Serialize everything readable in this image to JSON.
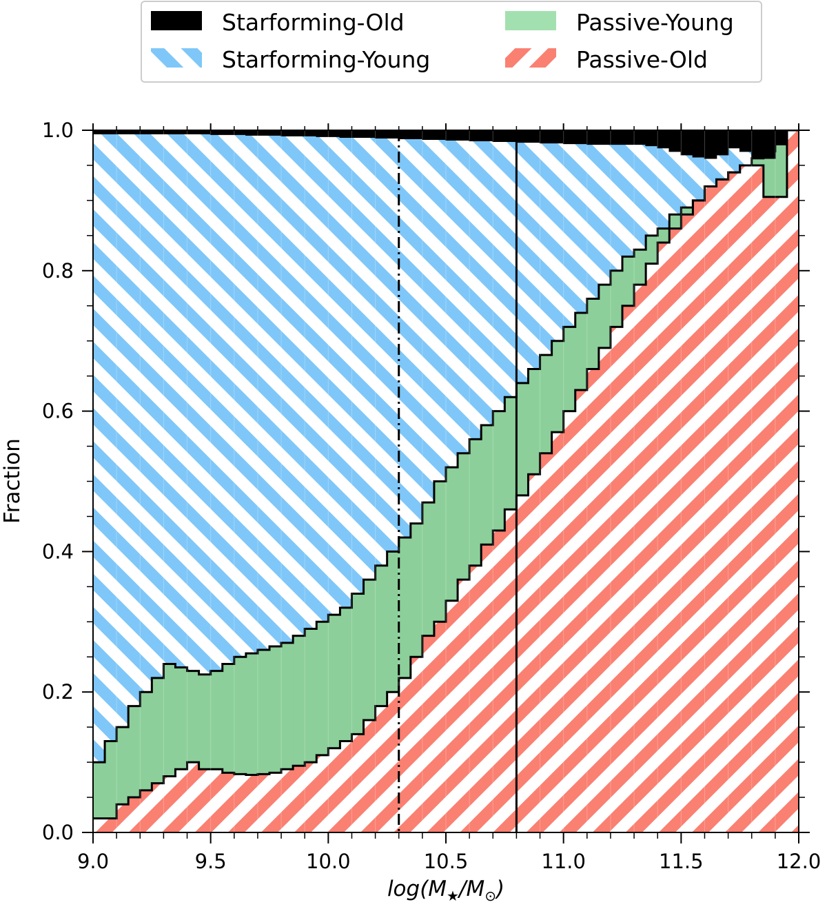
{
  "chart_data": {
    "type": "area",
    "stacked": true,
    "step": true,
    "title": "",
    "xlabel_prefix": "log(",
    "xlabel_m": "M",
    "xlabel_star_sub": "★",
    "xlabel_sep": "/",
    "xlabel_sun_sub": "⊙",
    "xlabel_suffix": ")",
    "ylabel": "Fraction",
    "xlim": [
      9.0,
      12.0
    ],
    "ylim": [
      0.0,
      1.0
    ],
    "xticks": [
      "9.0",
      "9.5",
      "10.0",
      "10.5",
      "11.0",
      "11.5",
      "12.0"
    ],
    "yticks": [
      "0.0",
      "0.2",
      "0.4",
      "0.6",
      "0.8",
      "1.0"
    ],
    "legend_position": "top, outside plot, 2 columns",
    "bin_edges_start": 9.0,
    "bin_edges_end": 12.0,
    "bin_count": 60,
    "series": [
      {
        "name": "Passive-Old",
        "color": "#fa8072",
        "pattern": "hatch-slash",
        "cumulative_top": [
          0.02,
          0.02,
          0.04,
          0.05,
          0.06,
          0.07,
          0.08,
          0.09,
          0.1,
          0.09,
          0.09,
          0.085,
          0.083,
          0.082,
          0.083,
          0.085,
          0.09,
          0.095,
          0.1,
          0.11,
          0.12,
          0.13,
          0.14,
          0.16,
          0.18,
          0.2,
          0.22,
          0.25,
          0.28,
          0.3,
          0.33,
          0.36,
          0.38,
          0.41,
          0.43,
          0.46,
          0.48,
          0.51,
          0.54,
          0.57,
          0.6,
          0.63,
          0.66,
          0.69,
          0.72,
          0.75,
          0.78,
          0.81,
          0.84,
          0.86,
          0.88,
          0.9,
          0.92,
          0.93,
          0.94,
          0.95,
          0.95,
          0.905,
          0.905,
          1.0
        ]
      },
      {
        "name": "Passive-Young",
        "color": "#90d7a0",
        "pattern": "solid",
        "cumulative_top": [
          0.1,
          0.13,
          0.15,
          0.18,
          0.2,
          0.22,
          0.24,
          0.235,
          0.23,
          0.225,
          0.23,
          0.24,
          0.25,
          0.255,
          0.26,
          0.265,
          0.27,
          0.28,
          0.29,
          0.3,
          0.31,
          0.32,
          0.34,
          0.36,
          0.38,
          0.4,
          0.42,
          0.44,
          0.47,
          0.5,
          0.52,
          0.54,
          0.56,
          0.58,
          0.6,
          0.62,
          0.64,
          0.66,
          0.68,
          0.7,
          0.72,
          0.74,
          0.76,
          0.78,
          0.8,
          0.82,
          0.83,
          0.85,
          0.86,
          0.88,
          0.89,
          0.9,
          0.92,
          0.93,
          0.94,
          0.95,
          0.96,
          0.97,
          0.98,
          1.0
        ]
      },
      {
        "name": "Starforming-Young",
        "color": "#7fc7f8",
        "pattern": "hatch-backslash",
        "cumulative_top": [
          0.995,
          0.995,
          0.995,
          0.995,
          0.995,
          0.995,
          0.995,
          0.995,
          0.995,
          0.995,
          0.994,
          0.994,
          0.994,
          0.993,
          0.993,
          0.993,
          0.992,
          0.992,
          0.992,
          0.991,
          0.991,
          0.99,
          0.99,
          0.99,
          0.989,
          0.989,
          0.988,
          0.988,
          0.987,
          0.987,
          0.986,
          0.986,
          0.985,
          0.985,
          0.984,
          0.984,
          0.983,
          0.983,
          0.982,
          0.982,
          0.981,
          0.981,
          0.98,
          0.98,
          0.98,
          0.98,
          0.98,
          0.978,
          0.975,
          0.97,
          0.965,
          0.962,
          0.96,
          0.965,
          0.975,
          0.97,
          0.96,
          0.96,
          0.98,
          1.0
        ]
      },
      {
        "name": "Starforming-Old",
        "color": "#000000",
        "pattern": "solid",
        "cumulative_top": [
          1.0,
          1.0,
          1.0,
          1.0,
          1.0,
          1.0,
          1.0,
          1.0,
          1.0,
          1.0,
          1.0,
          1.0,
          1.0,
          1.0,
          1.0,
          1.0,
          1.0,
          1.0,
          1.0,
          1.0,
          1.0,
          1.0,
          1.0,
          1.0,
          1.0,
          1.0,
          1.0,
          1.0,
          1.0,
          1.0,
          1.0,
          1.0,
          1.0,
          1.0,
          1.0,
          1.0,
          1.0,
          1.0,
          1.0,
          1.0,
          1.0,
          1.0,
          1.0,
          1.0,
          1.0,
          1.0,
          1.0,
          1.0,
          1.0,
          1.0,
          1.0,
          1.0,
          1.0,
          1.0,
          1.0,
          1.0,
          1.0,
          1.0,
          1.0,
          1.0
        ]
      }
    ],
    "legend_order": [
      "Starforming-Old",
      "Passive-Young",
      "Starforming-Young",
      "Passive-Old"
    ],
    "vertical_lines": [
      {
        "x": 10.3,
        "style": "dashdot",
        "color": "#000000"
      },
      {
        "x": 10.8,
        "style": "solid",
        "color": "#000000"
      }
    ]
  }
}
